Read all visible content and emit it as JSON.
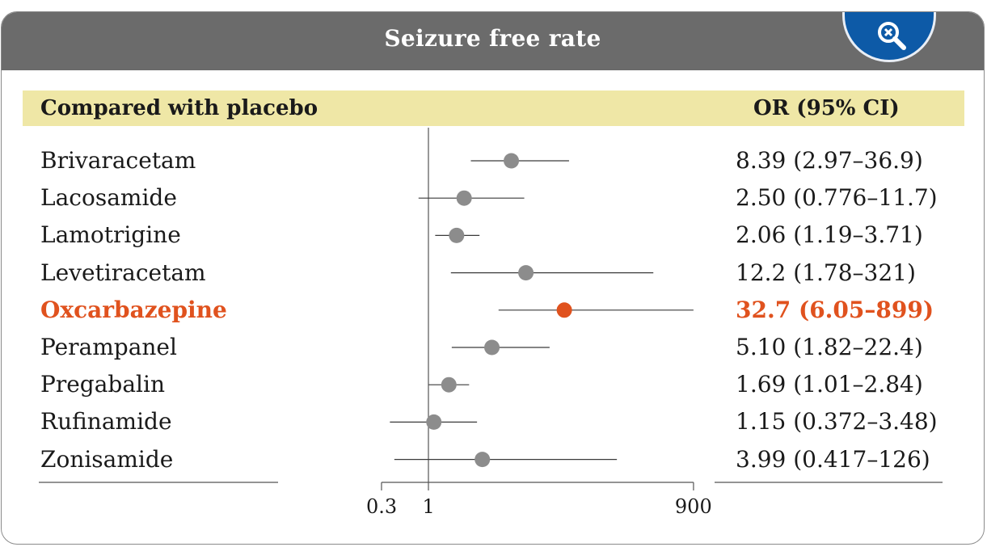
{
  "header": {
    "title": "Seizure free rate",
    "zoom_icon": "zoom-out-icon"
  },
  "table": {
    "left_header": "Compared with placebo",
    "right_header": "OR (95% CI)"
  },
  "chart_data": {
    "type": "forest",
    "title": "Seizure free rate",
    "x_scale": "log",
    "xlim": [
      0.3,
      900
    ],
    "x_ticks": [
      0.3,
      1,
      900
    ],
    "x_tick_labels": [
      "0.3",
      "1",
      "900"
    ],
    "reference_line": 1,
    "highlight_color": "#e0521e",
    "point_color": "#8c8c8c",
    "rows": [
      {
        "label": "Brivaracetam",
        "or": 8.39,
        "lo": 2.97,
        "hi": 36.9,
        "text": "8.39 (2.97–36.9)",
        "highlight": false
      },
      {
        "label": "Lacosamide",
        "or": 2.5,
        "lo": 0.776,
        "hi": 11.7,
        "text": "2.50 (0.776–11.7)",
        "highlight": false
      },
      {
        "label": "Lamotrigine",
        "or": 2.06,
        "lo": 1.19,
        "hi": 3.71,
        "text": "2.06 (1.19–3.71)",
        "highlight": false
      },
      {
        "label": "Levetiracetam",
        "or": 12.2,
        "lo": 1.78,
        "hi": 321,
        "text": "12.2 (1.78–321)",
        "highlight": false
      },
      {
        "label": "Oxcarbazepine",
        "or": 32.7,
        "lo": 6.05,
        "hi": 899,
        "text": "32.7 (6.05–899)",
        "highlight": true
      },
      {
        "label": "Perampanel",
        "or": 5.1,
        "lo": 1.82,
        "hi": 22.4,
        "text": "5.10 (1.82–22.4)",
        "highlight": false
      },
      {
        "label": "Pregabalin",
        "or": 1.69,
        "lo": 1.01,
        "hi": 2.84,
        "text": "1.69 (1.01–2.84)",
        "highlight": false
      },
      {
        "label": "Rufinamide",
        "or": 1.15,
        "lo": 0.372,
        "hi": 3.48,
        "text": "1.15 (0.372–3.48)",
        "highlight": false
      },
      {
        "label": "Zonisamide",
        "or": 3.99,
        "lo": 0.417,
        "hi": 126,
        "text": "3.99 (0.417–126)",
        "highlight": false
      }
    ]
  }
}
